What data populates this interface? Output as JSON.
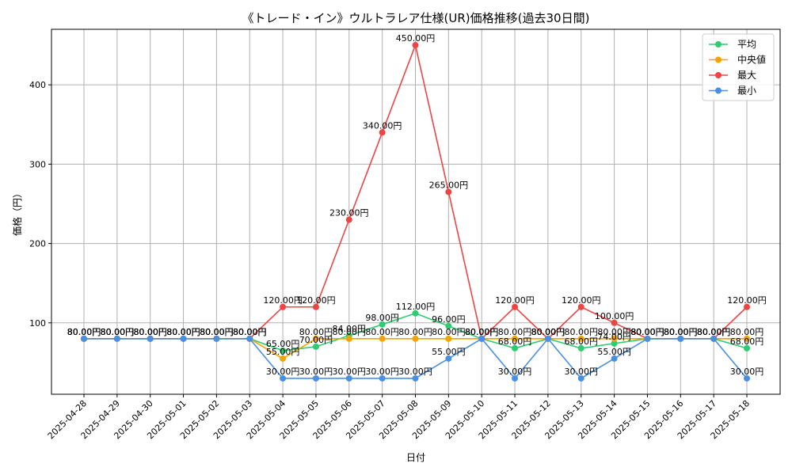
{
  "chart_data": {
    "type": "line",
    "title": "《トレード・イン》ウルトラレア仕様(UR)価格推移(過去30日間)",
    "xlabel": "日付",
    "ylabel": "価格（円）",
    "categories": [
      "2025-04-28",
      "2025-04-29",
      "2025-04-30",
      "2025-05-01",
      "2025-05-02",
      "2025-05-03",
      "2025-05-04",
      "2025-05-05",
      "2025-05-06",
      "2025-05-07",
      "2025-05-08",
      "2025-05-09",
      "2025-05-10",
      "2025-05-11",
      "2025-05-12",
      "2025-05-13",
      "2025-05-14",
      "2025-05-15",
      "2025-05-16",
      "2025-05-17",
      "2025-05-18"
    ],
    "ylim": [
      10,
      470
    ],
    "yticks": [
      100,
      200,
      300,
      400
    ],
    "grid": true,
    "legend_position": "top-right",
    "series": [
      {
        "name": "平均",
        "color": "#2ecc71",
        "values": [
          80,
          80,
          80,
          80,
          80,
          80,
          65,
          70,
          84,
          98,
          112,
          96,
          80,
          68,
          80,
          68,
          74,
          80,
          80,
          80,
          68
        ],
        "labels": [
          "80.00円",
          "80.00円",
          "80.00円",
          "80.00円",
          "80.00円",
          "80.00円",
          "65.00円",
          "70.00円",
          "84.00円",
          "98.00円",
          "112.00円",
          "96.00円",
          "80.00円",
          "68.00円",
          "80.00円",
          "68.00円",
          "74.00円",
          "80.00円",
          "80.00円",
          "80.00円",
          "68.00円"
        ]
      },
      {
        "name": "中央値",
        "color": "#f0a500",
        "values": [
          80,
          80,
          80,
          80,
          80,
          80,
          55,
          80,
          80,
          80,
          80,
          80,
          80,
          80,
          80,
          80,
          80,
          80,
          80,
          80,
          80
        ],
        "labels": [
          "80.00円",
          "80.00円",
          "80.00円",
          "80.00円",
          "80.00円",
          "80.00円",
          "55.00円",
          "80.00円",
          "80.00円",
          "80.00円",
          "80.00円",
          "80.00円",
          "80.00円",
          "80.00円",
          "80.00円",
          "80.00円",
          "80.00円",
          "80.00円",
          "80.00円",
          "80.00円",
          "80.00円"
        ]
      },
      {
        "name": "最大",
        "color": "#ef4444",
        "values": [
          80,
          80,
          80,
          80,
          80,
          80,
          120,
          120,
          230,
          340,
          450,
          265,
          80,
          120,
          80,
          120,
          100,
          80,
          80,
          80,
          120
        ],
        "labels": [
          "80.00円",
          "80.00円",
          "80.00円",
          "80.00円",
          "80.00円",
          "80.00円",
          "120.00円",
          "120.00円",
          "230.00円",
          "340.00円",
          "450.00円",
          "265.00円",
          "80.00円",
          "120.00円",
          "80.00円",
          "120.00円",
          "100.00円",
          "80.00円",
          "80.00円",
          "80.00円",
          "120.00円"
        ]
      },
      {
        "name": "最小",
        "color": "#4a90e2",
        "values": [
          80,
          80,
          80,
          80,
          80,
          80,
          30,
          30,
          30,
          30,
          30,
          55,
          80,
          30,
          80,
          30,
          55,
          80,
          80,
          80,
          30
        ],
        "labels": [
          "80.00円",
          "80.00円",
          "80.00円",
          "80.00円",
          "80.00円",
          "80.00円",
          "30.00円",
          "30.00円",
          "30.00円",
          "30.00円",
          "30.00円",
          "55.00円",
          "80.00円",
          "30.00円",
          "80.00円",
          "30.00円",
          "55.00円",
          "80.00円",
          "80.00円",
          "80.00円",
          "30.00円"
        ]
      }
    ]
  }
}
